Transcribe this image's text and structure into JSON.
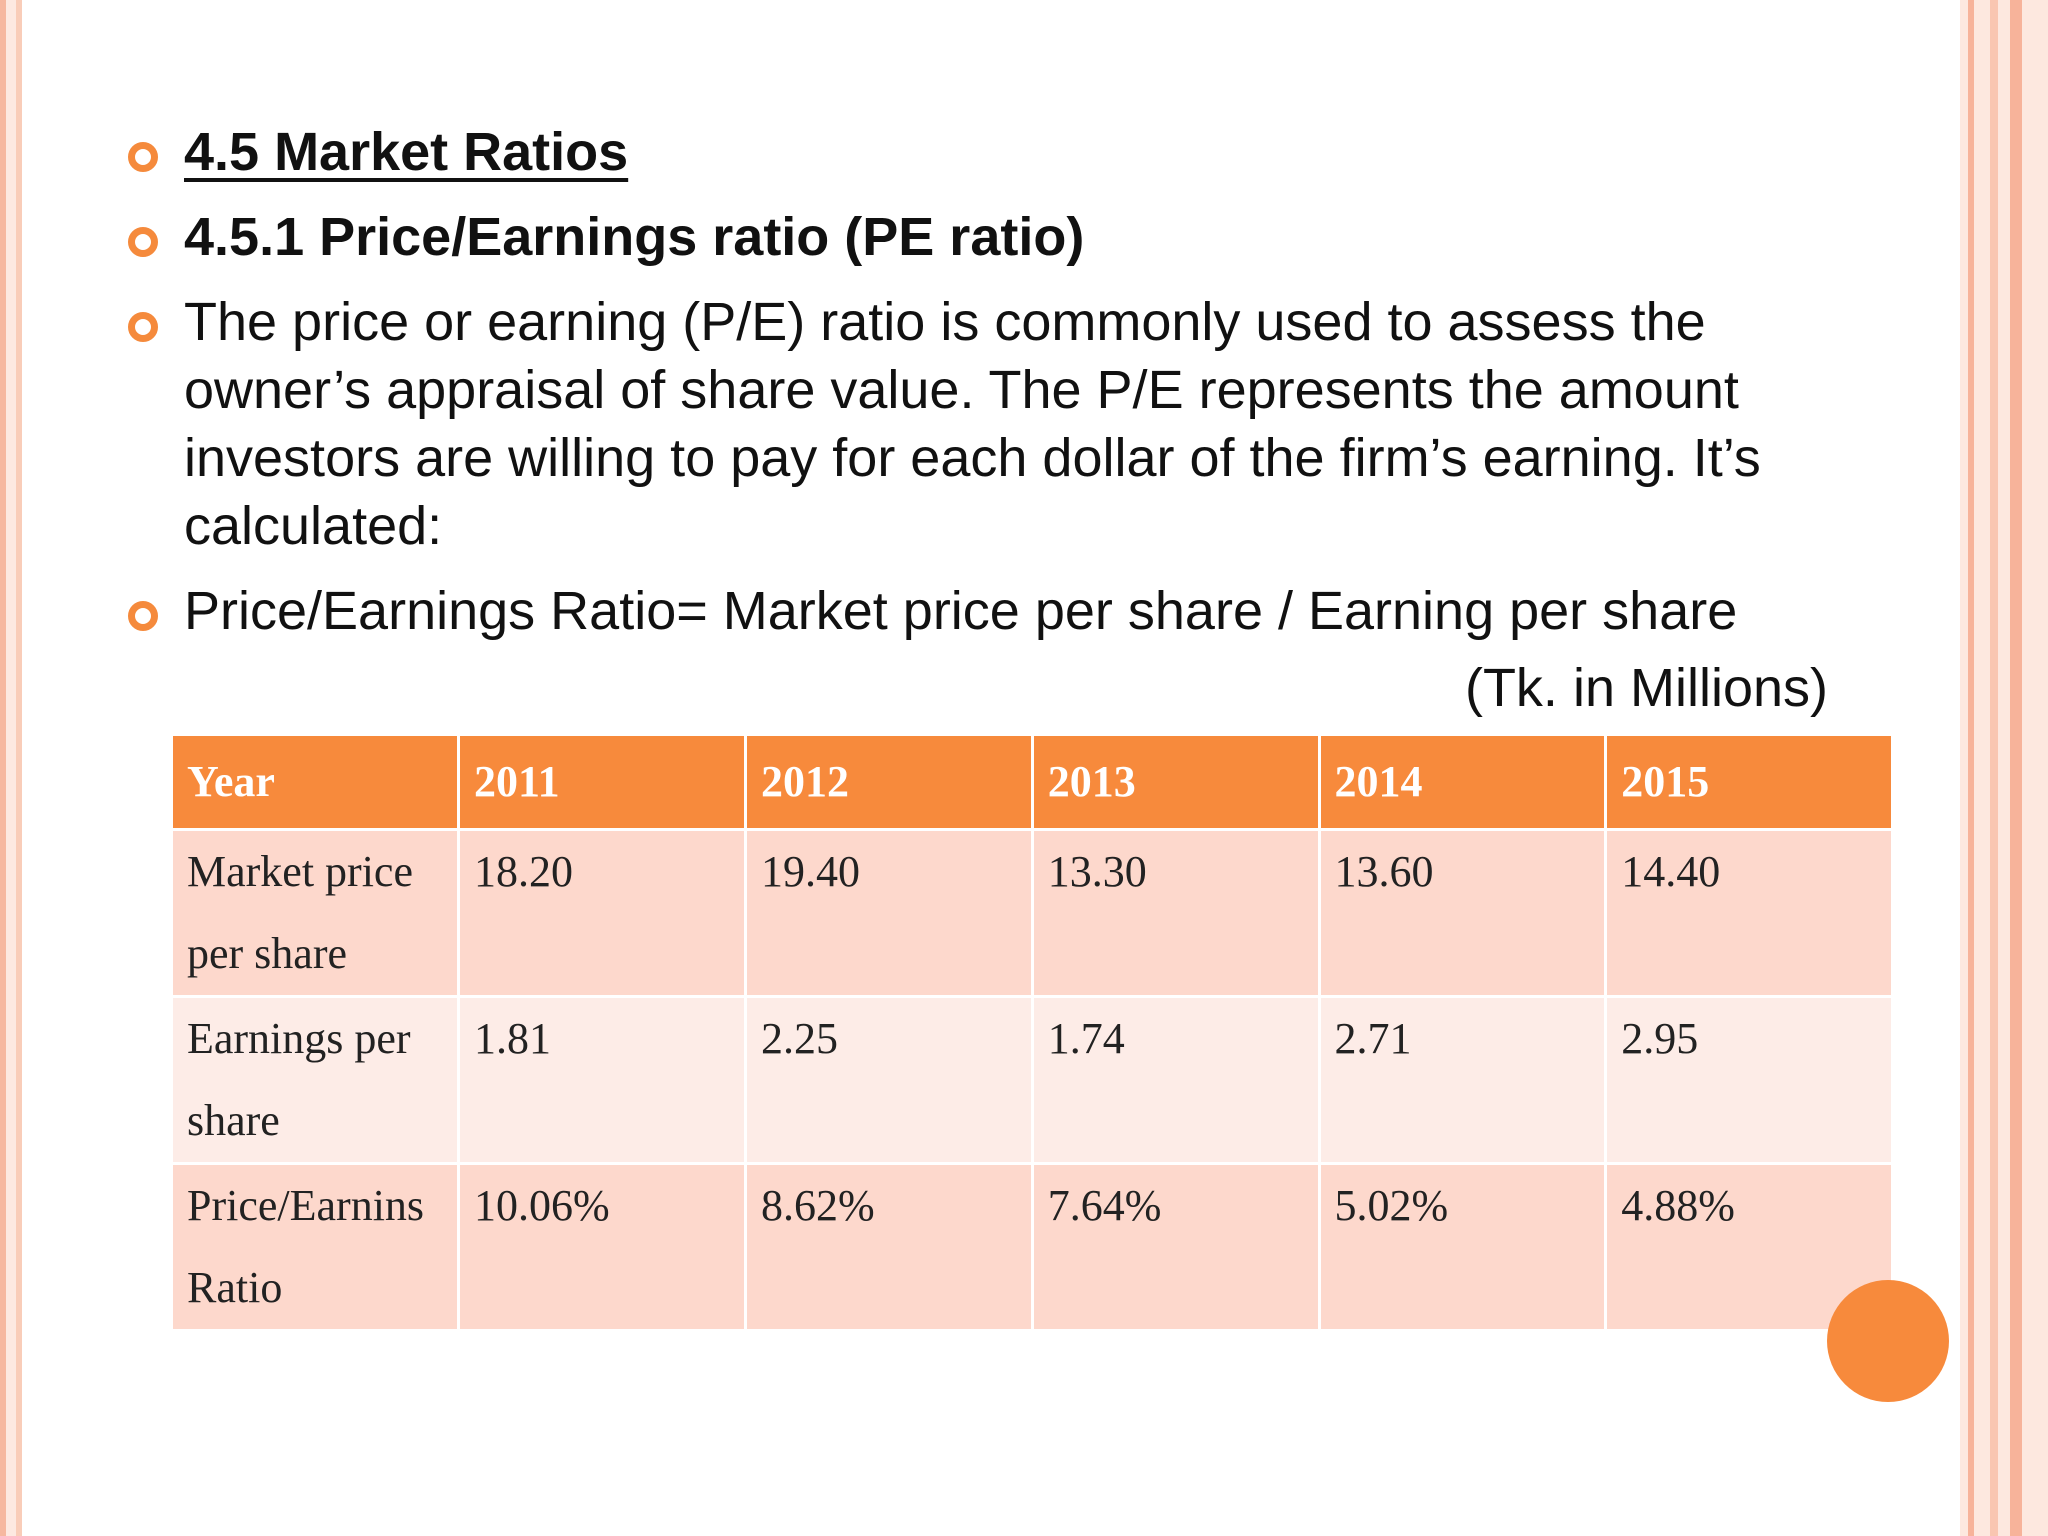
{
  "bullets": [
    {
      "text": "4.5 Market Ratios",
      "bold": true,
      "underline": true
    },
    {
      "text": "4.5.1 Price/Earnings ratio (PE ratio)",
      "bold": true,
      "underline": false
    },
    {
      "text": "The price or earning (P/E) ratio is commonly used to assess the owner’s appraisal of share value. The P/E represents the amount investors are willing to pay for each dollar of the firm’s earning. It’s calculated:",
      "bold": false,
      "underline": false
    },
    {
      "text": "Price/Earnings Ratio= Market price per share / Earning per share",
      "bold": false,
      "underline": false
    }
  ],
  "unit_note": "(Tk. in Millions)",
  "table": {
    "headers": [
      "Year",
      "2011",
      "2012",
      "2013",
      "2014",
      "2015"
    ],
    "rows": [
      [
        "Market price per share",
        "18.20",
        "19.40",
        "13.30",
        "13.60",
        "14.40"
      ],
      [
        "Earnings per share",
        "1.81",
        "2.25",
        "1.74",
        "2.71",
        "2.95"
      ],
      [
        "Price/Earnins Ratio",
        "10.06%",
        "8.62%",
        "7.64%",
        "5.02%",
        "4.88%"
      ]
    ]
  },
  "colors": {
    "accent": "#f78a3c",
    "row_dark": "#fdd8cc",
    "row_light": "#fdece7"
  }
}
